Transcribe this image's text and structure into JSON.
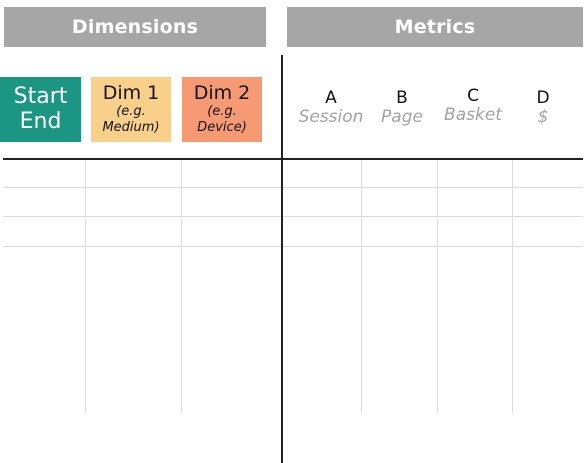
{
  "headers": {
    "dimensions": "Dimensions",
    "metrics": "Metrics"
  },
  "dimensions": [
    {
      "line1": "Start",
      "line2": "End",
      "color": "#1a9683"
    },
    {
      "title": "Dim 1",
      "sub1": "(e.g.",
      "sub2": "Medium)",
      "color": "#f8d08a"
    },
    {
      "title": "Dim 2",
      "sub1": "(e.g.",
      "sub2": "Device)",
      "color": "#f69a74"
    }
  ],
  "metrics": [
    {
      "letter": "A",
      "name": "Session"
    },
    {
      "letter": "B",
      "name": "Page"
    },
    {
      "letter": "C",
      "name": "Basket"
    },
    {
      "letter": "D",
      "name": "$"
    }
  ],
  "colors": {
    "header": "#a6a6a6",
    "grid": "#dcdcdc",
    "axis": "#222222"
  }
}
